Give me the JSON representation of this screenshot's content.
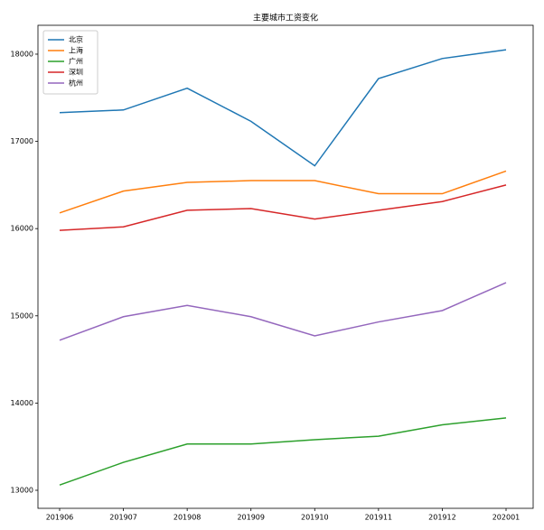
{
  "chart_data": {
    "type": "line",
    "title": "主要城市工资变化",
    "categories": [
      "201906",
      "201907",
      "201908",
      "201909",
      "201910",
      "201911",
      "201912",
      "202001"
    ],
    "series": [
      {
        "name": "北京",
        "color": "#1f77b4",
        "values": [
          17330,
          17360,
          17610,
          17230,
          16720,
          17720,
          17950,
          18050
        ]
      },
      {
        "name": "上海",
        "color": "#ff7f0e",
        "values": [
          16180,
          16430,
          16530,
          16550,
          16550,
          16400,
          16400,
          16660
        ]
      },
      {
        "name": "广州",
        "color": "#2ca02c",
        "values": [
          13060,
          13320,
          13530,
          13530,
          13580,
          13620,
          13750,
          13830
        ]
      },
      {
        "name": "深圳",
        "color": "#d62728",
        "values": [
          15980,
          16020,
          16210,
          16230,
          16110,
          16210,
          16310,
          16500
        ]
      },
      {
        "name": "杭州",
        "color": "#9467bd",
        "values": [
          14720,
          14990,
          15120,
          14990,
          14770,
          14930,
          15060,
          15380
        ]
      }
    ],
    "ylim": [
      12793,
      18331
    ],
    "yticks": [
      13000,
      14000,
      15000,
      16000,
      17000,
      18000
    ],
    "legend": "upper left",
    "grid": false
  }
}
